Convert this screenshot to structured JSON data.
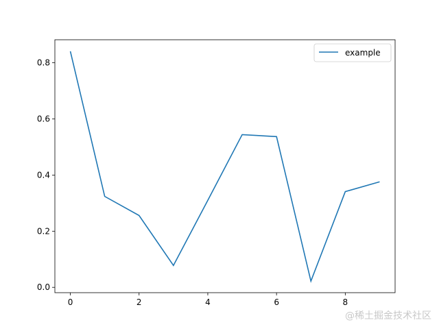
{
  "chart_data": {
    "type": "line",
    "title": "",
    "xlabel": "",
    "ylabel": "",
    "x": [
      0,
      1,
      2,
      3,
      4,
      5,
      6,
      7,
      8,
      9
    ],
    "series": [
      {
        "name": "example",
        "color": "#1f77b4",
        "values": [
          0.841,
          0.324,
          0.256,
          0.078,
          0.31,
          0.544,
          0.537,
          0.022,
          0.341,
          0.376
        ]
      }
    ],
    "xticks": [
      0,
      2,
      4,
      6,
      8
    ],
    "xtick_labels": [
      "0",
      "2",
      "4",
      "6",
      "8"
    ],
    "yticks": [
      0.0,
      0.2,
      0.4,
      0.6,
      0.8
    ],
    "ytick_labels": [
      "0.0",
      "0.2",
      "0.4",
      "0.6",
      "0.8"
    ],
    "xlim": [
      -0.45,
      9.45
    ],
    "ylim": [
      -0.019,
      0.882
    ],
    "grid": false,
    "legend_position": "top-right"
  },
  "watermark": "@稀土掘金技术社区"
}
